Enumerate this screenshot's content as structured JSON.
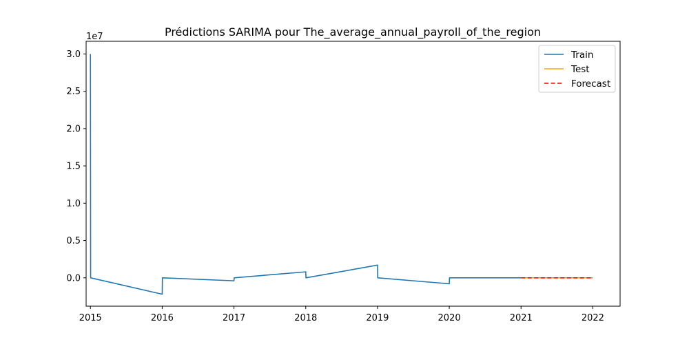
{
  "chart_data": {
    "type": "line",
    "title": "Prédictions SARIMA pour The_average_annual_payroll_of_the_region",
    "xlabel": "",
    "ylabel": "",
    "y_offset_label": "1e7",
    "xlim": [
      2014.94,
      2022.38
    ],
    "ylim": [
      -3800000,
      31700000
    ],
    "x_ticks": [
      2015,
      2016,
      2017,
      2018,
      2019,
      2020,
      2021,
      2022
    ],
    "x_tick_labels": [
      "2015",
      "2016",
      "2017",
      "2018",
      "2019",
      "2020",
      "2021",
      "2022"
    ],
    "y_ticks": [
      0,
      5000000,
      10000000,
      15000000,
      20000000,
      25000000,
      30000000
    ],
    "y_tick_labels": [
      "0.0",
      "0.5",
      "1.0",
      "1.5",
      "2.0",
      "2.5",
      "3.0"
    ],
    "grid": false,
    "legend_position": "top-right",
    "series": [
      {
        "name": "Train",
        "color": "#1f77b4",
        "style": "solid",
        "points": [
          [
            2015.0,
            30000000
          ],
          [
            2015.003,
            0
          ],
          [
            2016.0,
            -2200000
          ],
          [
            2016.003,
            0
          ],
          [
            2017.0,
            -400000
          ],
          [
            2017.003,
            0
          ],
          [
            2018.0,
            800000
          ],
          [
            2018.003,
            0
          ],
          [
            2019.0,
            1700000
          ],
          [
            2019.003,
            0
          ],
          [
            2020.0,
            -800000
          ],
          [
            2020.003,
            0
          ],
          [
            2021.0,
            0
          ]
        ]
      },
      {
        "name": "Test",
        "color": "#ffa500",
        "style": "solid",
        "points": [
          [
            2021.0,
            0
          ],
          [
            2022.0,
            0
          ]
        ]
      },
      {
        "name": "Forecast",
        "color": "#ff0000",
        "style": "dashed",
        "points": [
          [
            2021.0,
            0
          ],
          [
            2022.0,
            0
          ]
        ]
      }
    ]
  }
}
